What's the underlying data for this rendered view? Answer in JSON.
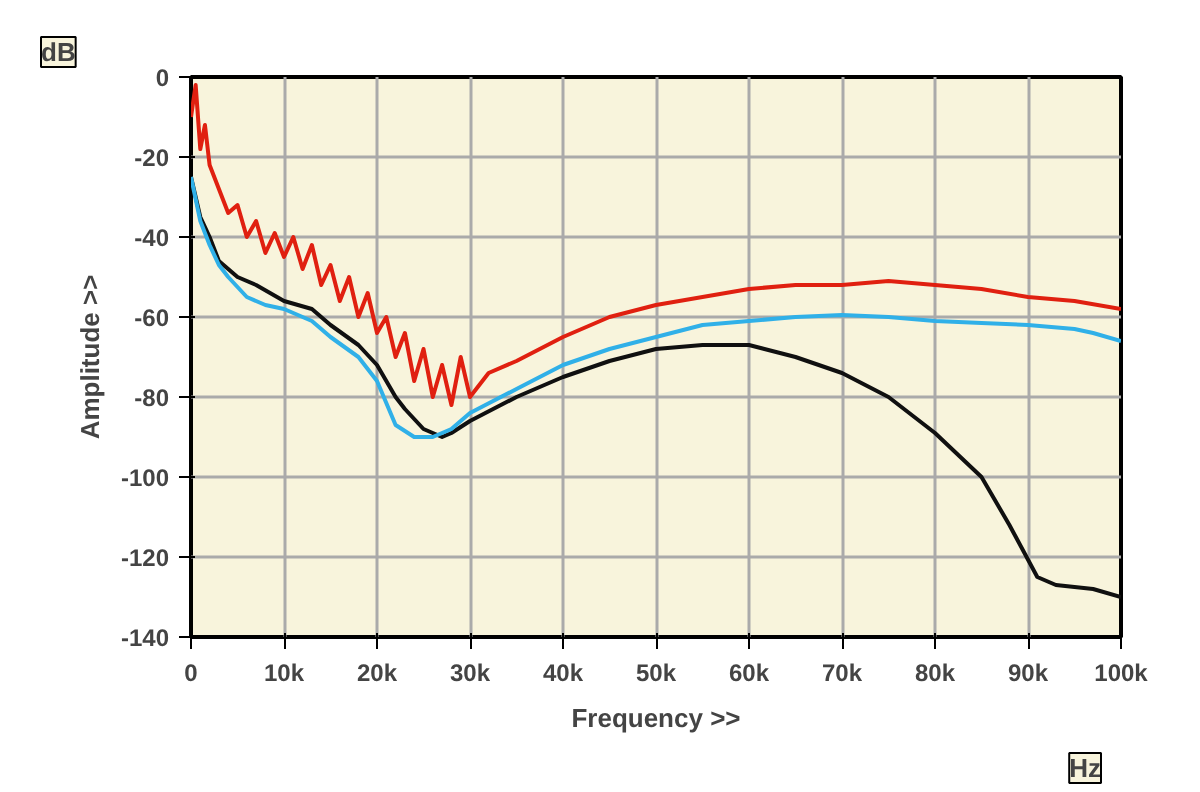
{
  "chart_data": {
    "type": "line",
    "xlabel": "Frequency >>",
    "ylabel": "Amplitude >>",
    "annotations": [
      "dB",
      "Hz"
    ],
    "xlim": [
      0,
      100000
    ],
    "ylim": [
      -140,
      0
    ],
    "xticks": [
      0,
      {
        "value": 10000,
        "label": "10k"
      },
      {
        "value": 20000,
        "label": "20k"
      },
      {
        "value": 30000,
        "label": "30k"
      },
      {
        "value": 40000,
        "label": "40k"
      },
      {
        "value": 50000,
        "label": "50k"
      },
      {
        "value": 60000,
        "label": "60k"
      },
      {
        "value": 70000,
        "label": "70k"
      },
      {
        "value": 80000,
        "label": "80k"
      },
      {
        "value": 90000,
        "label": "90k"
      },
      {
        "value": 100000,
        "label": "100k"
      }
    ],
    "yticks": [
      0,
      -20,
      -40,
      -60,
      -80,
      -100,
      -120,
      -140
    ],
    "grid": true,
    "marker": "none",
    "line_style": "solid",
    "series": [
      {
        "color": "#e02010",
        "x": [
          0,
          500,
          1000,
          1500,
          2000,
          3000,
          4000,
          5000,
          6000,
          7000,
          8000,
          9000,
          10000,
          11000,
          12000,
          13000,
          14000,
          15000,
          16000,
          17000,
          18000,
          19000,
          20000,
          21000,
          22000,
          23000,
          24000,
          25000,
          26000,
          27000,
          28000,
          29000,
          30000,
          32000,
          35000,
          40000,
          45000,
          50000,
          55000,
          60000,
          65000,
          70000,
          75000,
          80000,
          85000,
          90000,
          95000,
          100000
        ],
        "values": [
          -10,
          -2,
          -18,
          -12,
          -22,
          -28,
          -34,
          -32,
          -40,
          -36,
          -44,
          -39,
          -45,
          -40,
          -48,
          -42,
          -52,
          -47,
          -56,
          -50,
          -60,
          -54,
          -64,
          -60,
          -70,
          -64,
          -76,
          -68,
          -80,
          -72,
          -82,
          -70,
          -80,
          -74,
          -71,
          -65,
          -60,
          -57,
          -55,
          -53,
          -52,
          -52,
          -51,
          -52,
          -53,
          -55,
          -56,
          -58
        ]
      },
      {
        "color": "#101010",
        "x": [
          0,
          1000,
          2000,
          3000,
          4000,
          5000,
          7000,
          10000,
          13000,
          15000,
          18000,
          20000,
          22000,
          23000,
          25000,
          27000,
          28000,
          30000,
          35000,
          40000,
          45000,
          50000,
          55000,
          60000,
          65000,
          70000,
          75000,
          80000,
          85000,
          88000,
          91000,
          93000,
          97000,
          100000
        ],
        "values": [
          -25,
          -35,
          -40,
          -46,
          -48,
          -50,
          -52,
          -56,
          -58,
          -62,
          -67,
          -72,
          -80,
          -83,
          -88,
          -90,
          -89,
          -86,
          -80,
          -75,
          -71,
          -68,
          -67,
          -67,
          -70,
          -74,
          -80,
          -89,
          -100,
          -112,
          -125,
          -127,
          -128,
          -130
        ]
      },
      {
        "color": "#30b0e8",
        "x": [
          0,
          1000,
          2000,
          3000,
          4000,
          6000,
          8000,
          10000,
          13000,
          15000,
          18000,
          20000,
          22000,
          24000,
          26000,
          28000,
          30000,
          35000,
          40000,
          45000,
          50000,
          55000,
          60000,
          65000,
          70000,
          75000,
          80000,
          85000,
          90000,
          95000,
          97000,
          100000
        ],
        "values": [
          -25,
          -36,
          -42,
          -47,
          -50,
          -55,
          -57,
          -58,
          -61,
          -65,
          -70,
          -76,
          -87,
          -90,
          -90,
          -88,
          -84,
          -78,
          -72,
          -68,
          -65,
          -62,
          -61,
          -60,
          -59.5,
          -60,
          -61,
          -61.5,
          -62,
          -63,
          -64,
          -66
        ]
      }
    ]
  }
}
